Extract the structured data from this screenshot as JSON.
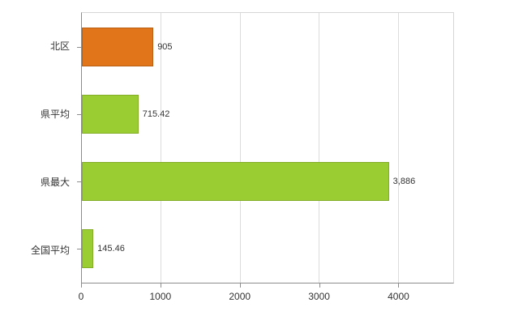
{
  "chart_data": {
    "type": "bar",
    "orientation": "horizontal",
    "title": "",
    "xlabel": "",
    "ylabel": "",
    "categories": [
      "北区",
      "県平均",
      "県最大",
      "全国平均"
    ],
    "values": [
      905,
      715.42,
      3886,
      145.46
    ],
    "value_labels": [
      "905",
      "715.42",
      "3,886",
      "145.46"
    ],
    "bar_colors": [
      "#e0751a",
      "#9acd32",
      "#9acd32",
      "#9acd32"
    ],
    "bar_border_colors": [
      "#b85e12",
      "#83ad27",
      "#83ad27",
      "#83ad27"
    ],
    "xlim": [
      0,
      4700
    ],
    "xticks": [
      0,
      1000,
      2000,
      3000,
      4000
    ],
    "xtick_labels": [
      "0",
      "1000",
      "2000",
      "3000",
      "4000"
    ],
    "grid": true,
    "legend": "none",
    "background_color": "#ffffff",
    "gridline_color": "#dcdcdc",
    "axis_color": "#8c8c8c",
    "text_color": "#333333"
  }
}
